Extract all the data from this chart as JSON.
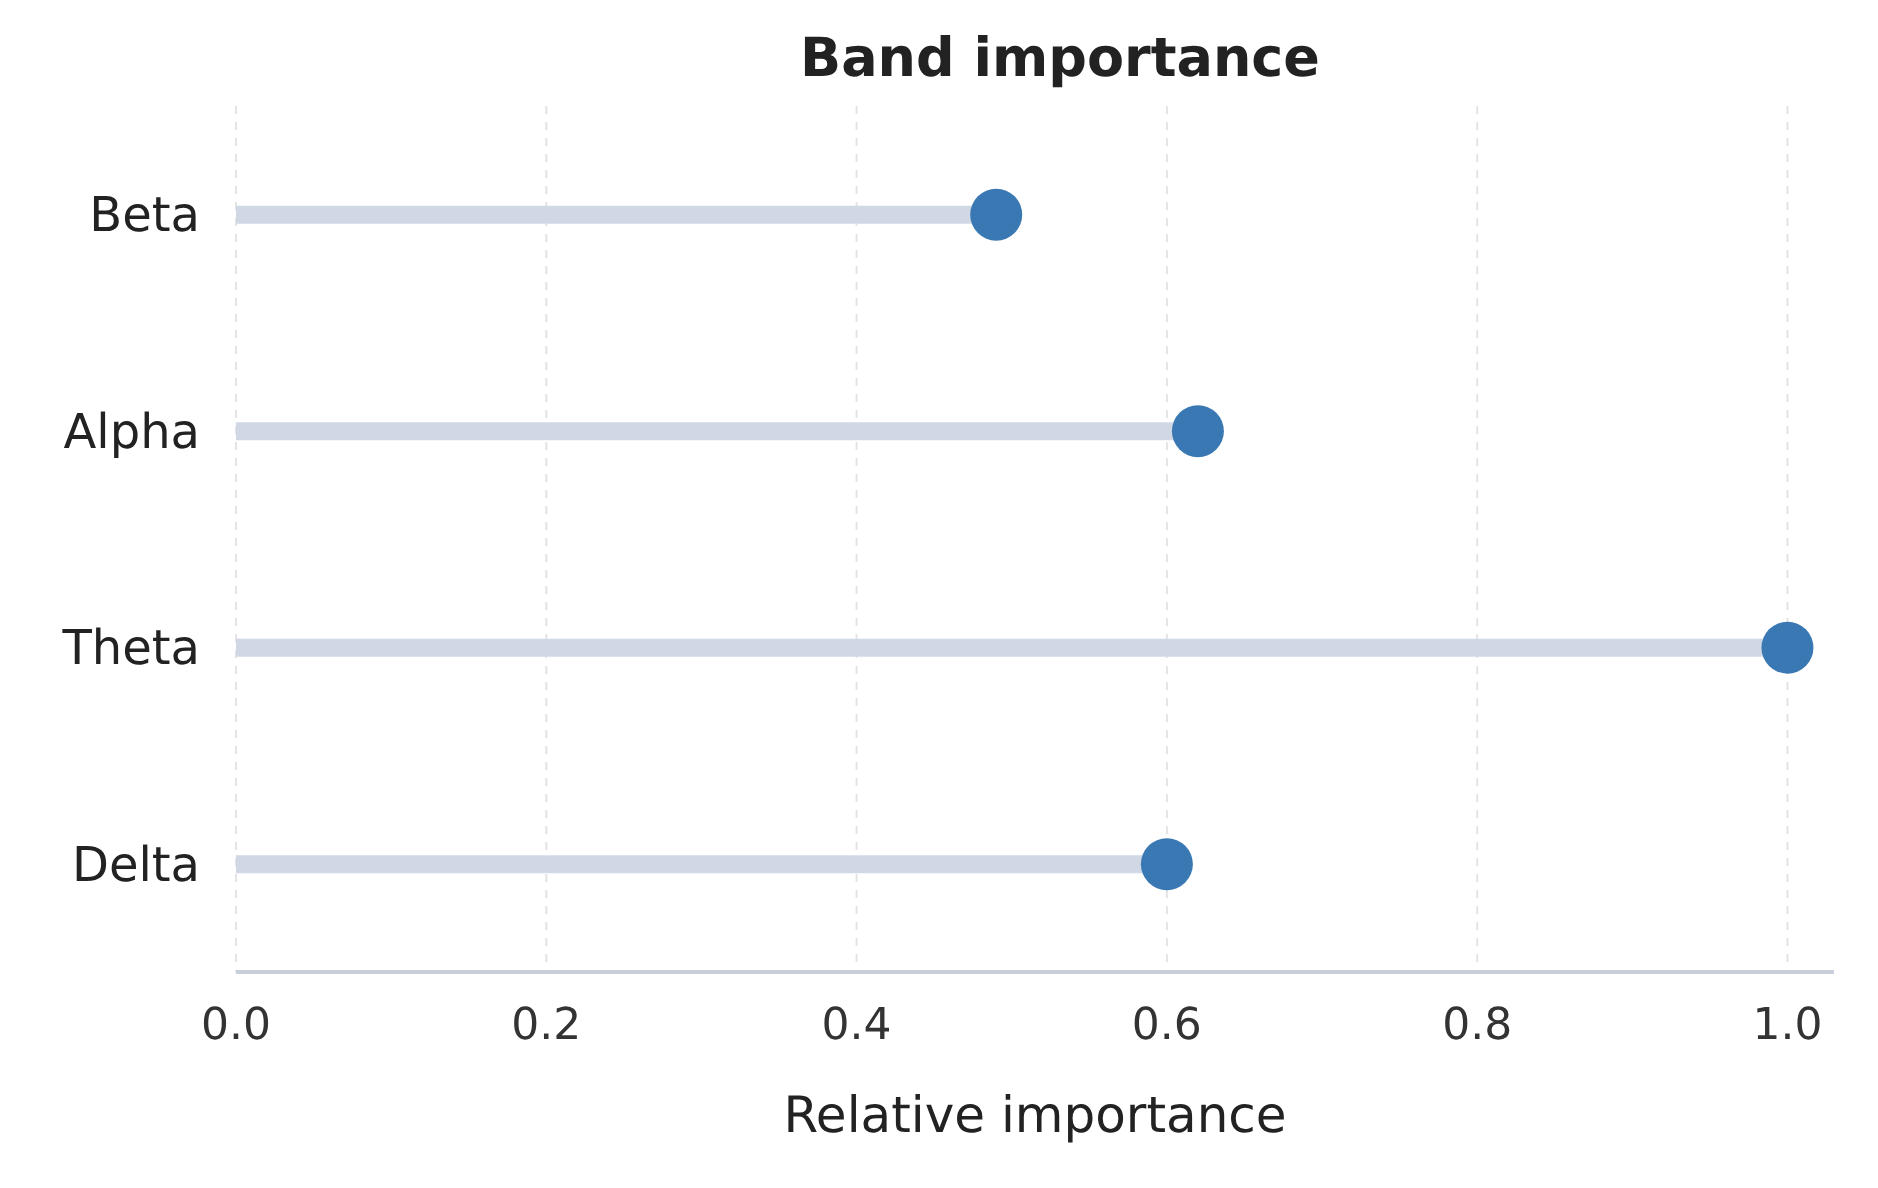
{
  "chart_data": {
    "type": "lollipop",
    "orientation": "horizontal",
    "title": "Band importance",
    "xlabel": "Relative importance",
    "categories": [
      "Beta",
      "Alpha",
      "Theta",
      "Delta"
    ],
    "values": [
      0.49,
      0.62,
      1.0,
      0.6
    ],
    "color": "#3a78b3",
    "xlim": [
      0,
      1.03
    ],
    "xticks": [
      {
        "value": 0,
        "label": "0.0"
      },
      {
        "value": 0.2,
        "label": "0.2"
      },
      {
        "value": 0.4,
        "label": "0.4"
      },
      {
        "value": 0.6,
        "label": "0.6"
      },
      {
        "value": 0.8,
        "label": "0.8"
      },
      {
        "value": 1,
        "label": "1.0"
      }
    ],
    "grid": "x"
  }
}
